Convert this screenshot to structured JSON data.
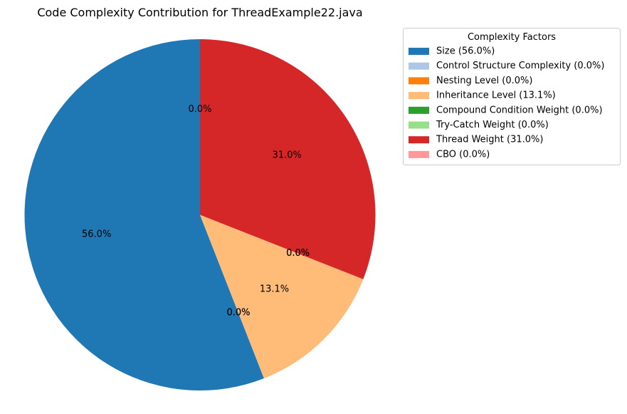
{
  "chart_data": {
    "type": "pie",
    "title": "Code Complexity Contribution for ThreadExample22.java",
    "start_angle_deg": 90,
    "direction": "counterclockwise",
    "slices": [
      {
        "label": "Size",
        "value": 56.0,
        "pct_label": "56.0%",
        "legend_label": "Size (56.0%)",
        "color": "#1f77b4"
      },
      {
        "label": "Control Structure Complexity",
        "value": 0.0,
        "pct_label": "0.0%",
        "legend_label": "Control Structure Complexity (0.0%)",
        "color": "#aec7e8"
      },
      {
        "label": "Nesting Level",
        "value": 0.0,
        "pct_label": "0.0%",
        "legend_label": "Nesting Level (0.0%)",
        "color": "#ff7f0e"
      },
      {
        "label": "Inheritance Level",
        "value": 13.1,
        "pct_label": "13.1%",
        "legend_label": "Inheritance Level (13.1%)",
        "color": "#ffbb78"
      },
      {
        "label": "Compound Condition Weight",
        "value": 0.0,
        "pct_label": "0.0%",
        "legend_label": "Compound Condition Weight (0.0%)",
        "color": "#2ca02c"
      },
      {
        "label": "Try-Catch Weight",
        "value": 0.0,
        "pct_label": "0.0%",
        "legend_label": "Try-Catch Weight (0.0%)",
        "color": "#98df8a"
      },
      {
        "label": "Thread Weight",
        "value": 31.0,
        "pct_label": "31.0%",
        "legend_label": "Thread Weight (31.0%)",
        "color": "#d62728"
      },
      {
        "label": "CBO",
        "value": 0.0,
        "pct_label": "0.0%",
        "legend_label": "CBO (0.0%)",
        "color": "#ff9896"
      }
    ],
    "legend": {
      "title": "Complexity Factors",
      "placement": "upper-right, outside plot"
    }
  }
}
